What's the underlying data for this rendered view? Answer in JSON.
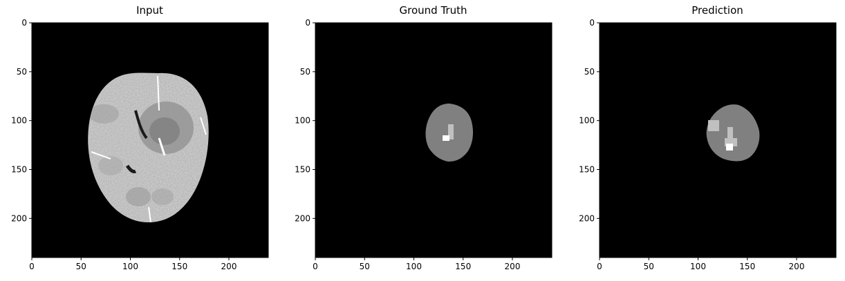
{
  "panels": [
    {
      "title": "Input"
    },
    {
      "title": "Ground Truth"
    },
    {
      "title": "Prediction"
    }
  ],
  "axes": {
    "x_ticks": [
      0,
      50,
      100,
      150,
      200
    ],
    "y_ticks": [
      0,
      50,
      100,
      150,
      200
    ],
    "x_range": [
      0,
      240
    ],
    "y_range": [
      0,
      240
    ]
  },
  "colors": {
    "background": "#000000",
    "edema": "#808080",
    "necrosis": "#c0c0c0",
    "enhancing": "#ffffff",
    "brain": "#d8d8d8"
  }
}
